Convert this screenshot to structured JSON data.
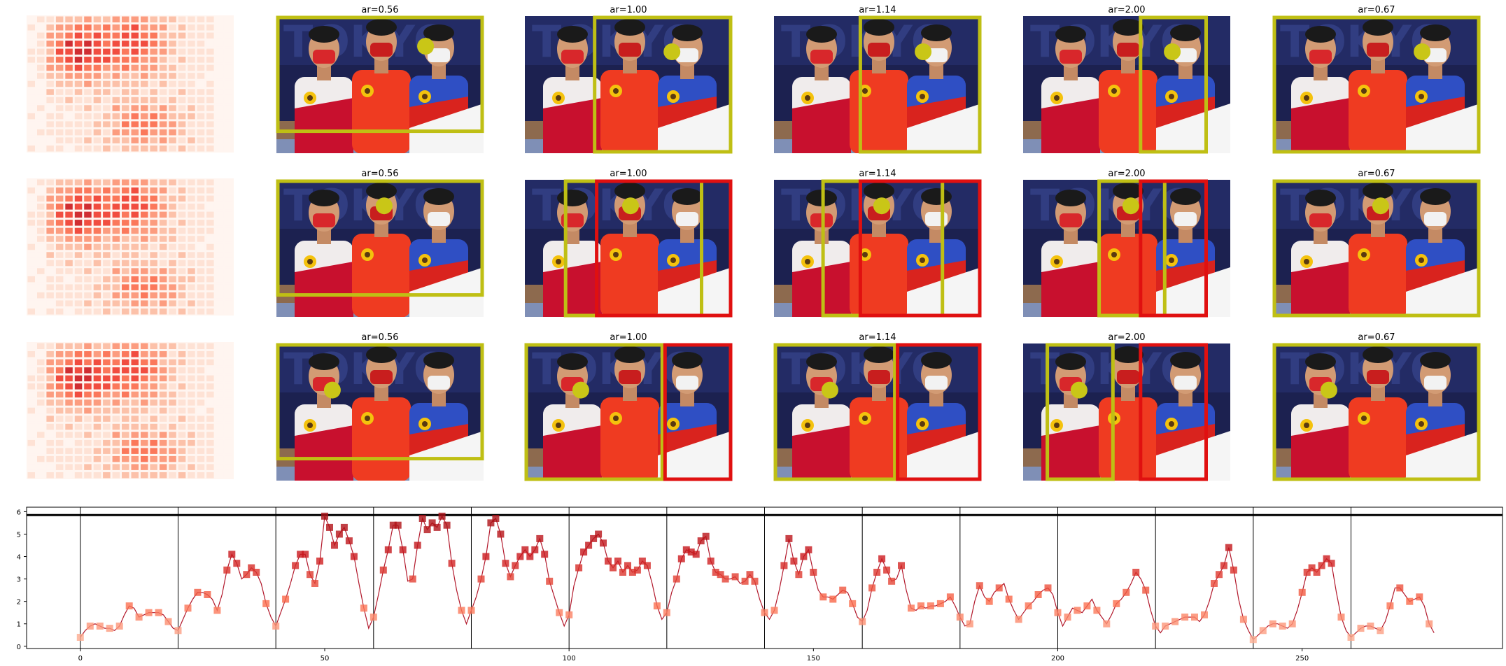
{
  "figure": {
    "aspect_titles": [
      "ar=0.56",
      "ar=1.00",
      "ar=1.14",
      "ar=2.00",
      "ar=0.67"
    ]
  },
  "colors": {
    "crop_box": "#bfbf14",
    "alt_box": "#e01010",
    "dot": "#c9c617",
    "line": "#b2182b",
    "threshold": "#000000"
  },
  "chart_data": {
    "type": "line",
    "title": "",
    "xlabel": "",
    "ylabel": "",
    "xlim": [
      -11,
      291
    ],
    "ylim": [
      -0.1,
      6.2
    ],
    "xticks": [
      0,
      50,
      100,
      150,
      200,
      250
    ],
    "yticks": [
      0,
      1,
      2,
      3,
      4,
      5,
      6
    ],
    "threshold": 5.85,
    "segment_boundaries": [
      0,
      20,
      40,
      60,
      80,
      100,
      120,
      140,
      160,
      180,
      200,
      220,
      240,
      260
    ],
    "grid": false,
    "values": [
      0.4,
      0.7,
      0.9,
      1.0,
      0.9,
      0.8,
      0.8,
      0.7,
      0.9,
      1.4,
      1.8,
      1.7,
      1.3,
      1.4,
      1.5,
      1.5,
      1.5,
      1.4,
      1.1,
      0.8,
      0.7,
      1.2,
      1.7,
      2.1,
      2.4,
      2.4,
      2.3,
      2.1,
      1.6,
      2.3,
      3.4,
      4.1,
      3.7,
      3.0,
      3.2,
      3.5,
      3.3,
      2.8,
      1.9,
      1.3,
      0.9,
      1.5,
      2.1,
      2.8,
      3.6,
      4.1,
      4.1,
      3.2,
      2.8,
      3.8,
      5.8,
      5.3,
      4.5,
      5.0,
      5.3,
      4.7,
      4.0,
      2.8,
      1.7,
      0.8,
      1.3,
      2.3,
      3.4,
      4.3,
      5.4,
      5.4,
      4.3,
      2.9,
      3.0,
      4.5,
      5.7,
      5.2,
      5.5,
      5.3,
      5.8,
      5.4,
      3.7,
      2.5,
      1.6,
      1.0,
      1.6,
      2.2,
      3.0,
      4.0,
      5.5,
      5.7,
      5.0,
      3.7,
      3.1,
      3.6,
      4.0,
      4.3,
      4.0,
      4.3,
      4.8,
      4.1,
      2.9,
      2.2,
      1.5,
      0.9,
      1.4,
      2.7,
      3.5,
      4.2,
      4.5,
      4.8,
      5.0,
      4.6,
      3.8,
      3.5,
      3.8,
      3.3,
      3.6,
      3.3,
      3.4,
      3.8,
      3.6,
      2.8,
      1.8,
      1.2,
      1.5,
      2.4,
      3.0,
      3.9,
      4.3,
      4.2,
      4.1,
      4.7,
      4.9,
      3.8,
      3.3,
      3.2,
      3.0,
      3.0,
      3.1,
      2.8,
      2.9,
      3.2,
      2.9,
      2.1,
      1.5,
      1.2,
      1.6,
      2.5,
      3.6,
      4.8,
      3.8,
      3.2,
      4.0,
      4.3,
      3.3,
      2.5,
      2.2,
      2.2,
      2.1,
      2.3,
      2.5,
      2.4,
      1.9,
      1.3,
      1.1,
      1.6,
      2.6,
      3.3,
      3.9,
      3.4,
      2.9,
      3.0,
      3.6,
      2.5,
      1.7,
      1.6,
      1.8,
      1.7,
      1.8,
      1.8,
      1.9,
      2.0,
      2.2,
      1.8,
      1.3,
      0.9,
      1.0,
      2.0,
      2.7,
      2.2,
      2.0,
      2.4,
      2.6,
      2.8,
      2.1,
      1.6,
      1.2,
      1.5,
      1.8,
      2.0,
      2.3,
      2.5,
      2.6,
      2.3,
      1.5,
      0.9,
      1.3,
      1.7,
      1.6,
      1.5,
      1.8,
      2.1,
      1.6,
      1.3,
      1.0,
      1.4,
      1.9,
      2.1,
      2.4,
      2.8,
      3.3,
      3.0,
      2.5,
      1.6,
      0.9,
      0.6,
      0.9,
      1.0,
      1.1,
      1.2,
      1.3,
      1.3,
      1.3,
      1.1,
      1.4,
      2.0,
      2.8,
      3.2,
      3.6,
      4.4,
      3.4,
      2.1,
      1.2,
      0.7,
      0.3,
      0.5,
      0.7,
      0.9,
      1.0,
      1.0,
      0.9,
      0.8,
      1.0,
      1.6,
      2.4,
      3.3,
      3.5,
      3.3,
      3.6,
      3.9,
      3.7,
      2.4,
      1.3,
      0.7,
      0.4,
      0.6,
      0.8,
      0.9,
      0.9,
      0.8,
      0.7,
      1.1,
      1.8,
      2.6,
      2.6,
      2.3,
      2.0,
      2.1,
      2.2,
      1.8,
      1.0,
      0.6
    ]
  }
}
